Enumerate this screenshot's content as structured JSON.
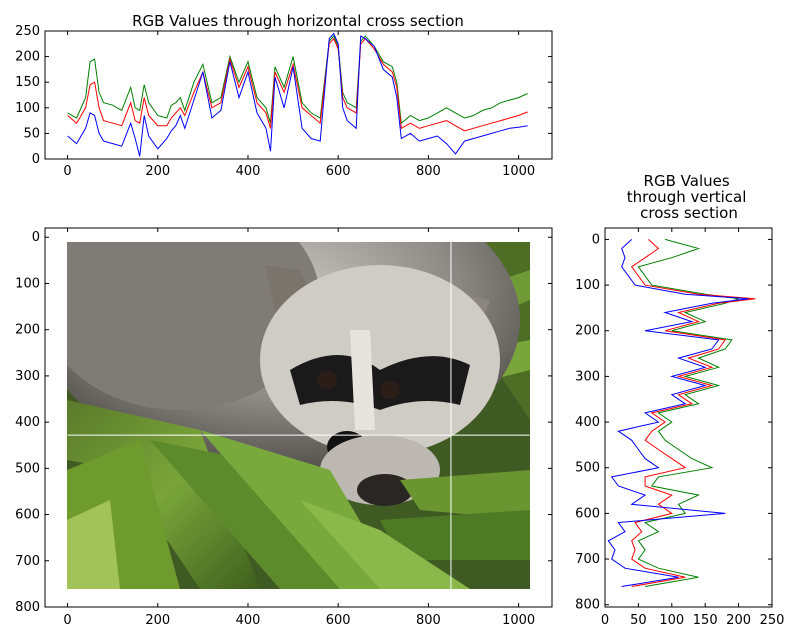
{
  "chart_data": [
    {
      "type": "line",
      "title": "RGB Values through horizontal cross section",
      "xlim": [
        -50,
        1074
      ],
      "ylim": [
        0,
        250
      ],
      "xticks": [
        0,
        200,
        400,
        600,
        800,
        1000
      ],
      "yticks": [
        0,
        50,
        100,
        150,
        200,
        250
      ],
      "series": [
        {
          "color": "#008000",
          "x": [
            0,
            20,
            40,
            50,
            60,
            70,
            80,
            100,
            120,
            140,
            150,
            160,
            170,
            180,
            200,
            220,
            230,
            240,
            250,
            260,
            280,
            300,
            320,
            340,
            360,
            380,
            400,
            420,
            440,
            450,
            460,
            480,
            500,
            520,
            540,
            560,
            580,
            590,
            600,
            610,
            620,
            640,
            650,
            660,
            680,
            700,
            720,
            730,
            740,
            760,
            780,
            800,
            820,
            840,
            860,
            880,
            900,
            920,
            940,
            960,
            980,
            1000,
            1020
          ],
          "values": [
            90,
            80,
            120,
            190,
            195,
            130,
            110,
            105,
            95,
            140,
            100,
            95,
            145,
            110,
            85,
            80,
            105,
            110,
            120,
            95,
            150,
            185,
            110,
            120,
            200,
            150,
            190,
            120,
            100,
            70,
            180,
            140,
            200,
            110,
            90,
            80,
            230,
            240,
            220,
            130,
            110,
            100,
            230,
            240,
            220,
            190,
            180,
            150,
            70,
            85,
            75,
            80,
            90,
            100,
            90,
            80,
            85,
            95,
            100,
            110,
            115,
            120,
            128
          ]
        },
        {
          "color": "#ff0000",
          "x": [
            0,
            20,
            40,
            50,
            60,
            70,
            80,
            100,
            120,
            140,
            150,
            160,
            170,
            180,
            200,
            220,
            230,
            240,
            250,
            260,
            280,
            300,
            320,
            340,
            360,
            380,
            400,
            420,
            440,
            450,
            460,
            480,
            500,
            520,
            540,
            560,
            580,
            590,
            600,
            610,
            620,
            640,
            650,
            660,
            680,
            700,
            720,
            730,
            740,
            760,
            780,
            800,
            820,
            840,
            860,
            880,
            900,
            920,
            940,
            960,
            980,
            1000,
            1020
          ],
          "values": [
            85,
            70,
            100,
            145,
            150,
            100,
            75,
            70,
            65,
            110,
            75,
            70,
            120,
            85,
            65,
            65,
            80,
            90,
            100,
            85,
            130,
            170,
            100,
            110,
            195,
            140,
            180,
            110,
            90,
            60,
            170,
            130,
            185,
            100,
            85,
            70,
            225,
            235,
            215,
            120,
            100,
            90,
            225,
            235,
            215,
            185,
            170,
            140,
            60,
            70,
            60,
            65,
            70,
            75,
            65,
            55,
            60,
            65,
            70,
            75,
            80,
            85,
            92
          ]
        },
        {
          "color": "#0000ff",
          "x": [
            0,
            20,
            40,
            50,
            60,
            70,
            80,
            100,
            120,
            140,
            150,
            160,
            170,
            180,
            200,
            220,
            230,
            240,
            250,
            260,
            280,
            300,
            320,
            340,
            360,
            380,
            400,
            420,
            440,
            450,
            460,
            480,
            500,
            520,
            540,
            560,
            580,
            590,
            600,
            610,
            620,
            640,
            650,
            660,
            680,
            700,
            720,
            730,
            740,
            760,
            780,
            800,
            820,
            840,
            860,
            880,
            900,
            920,
            940,
            960,
            980,
            1000,
            1020
          ],
          "values": [
            45,
            30,
            60,
            90,
            85,
            50,
            35,
            30,
            25,
            70,
            40,
            5,
            85,
            45,
            20,
            40,
            55,
            65,
            85,
            60,
            115,
            170,
            80,
            95,
            190,
            120,
            170,
            90,
            60,
            15,
            160,
            100,
            180,
            60,
            40,
            35,
            235,
            245,
            225,
            100,
            75,
            60,
            240,
            235,
            220,
            175,
            160,
            120,
            40,
            50,
            35,
            40,
            45,
            30,
            10,
            35,
            40,
            45,
            50,
            55,
            60,
            62,
            65
          ]
        }
      ]
    },
    {
      "type": "image",
      "xlim": [
        -50,
        1074
      ],
      "ylim": [
        800,
        -20
      ],
      "xticks": [
        0,
        200,
        400,
        600,
        800,
        1000
      ],
      "yticks": [
        0,
        100,
        200,
        300,
        400,
        500,
        600,
        700,
        800
      ],
      "image_extent": [
        0,
        1024,
        768,
        0
      ],
      "crosshair": {
        "x": 850,
        "y": 428
      }
    },
    {
      "type": "line",
      "title": "RGB Values\nthrough vertical\ncross section",
      "xlim": [
        0,
        250
      ],
      "ylim": [
        805,
        -25
      ],
      "xticks": [
        0,
        50,
        100,
        150,
        200,
        250
      ],
      "yticks": [
        0,
        100,
        200,
        300,
        400,
        500,
        600,
        700,
        800
      ],
      "series": [
        {
          "color": "#008000",
          "y": [
            0,
            20,
            40,
            60,
            100,
            120,
            130,
            140,
            160,
            180,
            200,
            220,
            240,
            260,
            280,
            300,
            320,
            340,
            360,
            380,
            400,
            420,
            440,
            460,
            480,
            500,
            520,
            540,
            560,
            580,
            600,
            620,
            640,
            660,
            680,
            700,
            720,
            740,
            760
          ],
          "values": [
            90,
            140,
            100,
            50,
            70,
            150,
            200,
            180,
            120,
            150,
            100,
            190,
            180,
            140,
            170,
            120,
            170,
            120,
            140,
            80,
            100,
            80,
            90,
            110,
            130,
            160,
            80,
            70,
            140,
            110,
            120,
            60,
            80,
            50,
            60,
            50,
            80,
            140,
            60
          ]
        },
        {
          "color": "#ff0000",
          "y": [
            0,
            20,
            40,
            60,
            100,
            120,
            130,
            140,
            160,
            180,
            200,
            220,
            240,
            260,
            280,
            300,
            320,
            340,
            360,
            380,
            400,
            420,
            440,
            460,
            480,
            500,
            520,
            540,
            560,
            580,
            600,
            620,
            640,
            660,
            680,
            700,
            720,
            740,
            760
          ],
          "values": [
            65,
            80,
            60,
            40,
            60,
            140,
            225,
            170,
            110,
            140,
            90,
            180,
            170,
            125,
            160,
            110,
            160,
            110,
            130,
            70,
            90,
            70,
            60,
            80,
            100,
            120,
            60,
            60,
            100,
            80,
            100,
            45,
            55,
            40,
            45,
            40,
            60,
            120,
            40
          ]
        },
        {
          "color": "#0000ff",
          "y": [
            0,
            20,
            40,
            60,
            100,
            120,
            130,
            140,
            160,
            180,
            200,
            220,
            240,
            260,
            280,
            300,
            320,
            340,
            360,
            380,
            400,
            420,
            440,
            460,
            480,
            500,
            520,
            540,
            560,
            580,
            600,
            620,
            640,
            660,
            680,
            700,
            720,
            740,
            760
          ],
          "values": [
            40,
            25,
            30,
            25,
            45,
            120,
            215,
            160,
            90,
            130,
            60,
            170,
            160,
            110,
            150,
            100,
            150,
            100,
            120,
            60,
            80,
            20,
            40,
            50,
            60,
            80,
            10,
            20,
            60,
            40,
            180,
            20,
            30,
            5,
            15,
            10,
            30,
            110,
            25
          ]
        }
      ]
    }
  ]
}
